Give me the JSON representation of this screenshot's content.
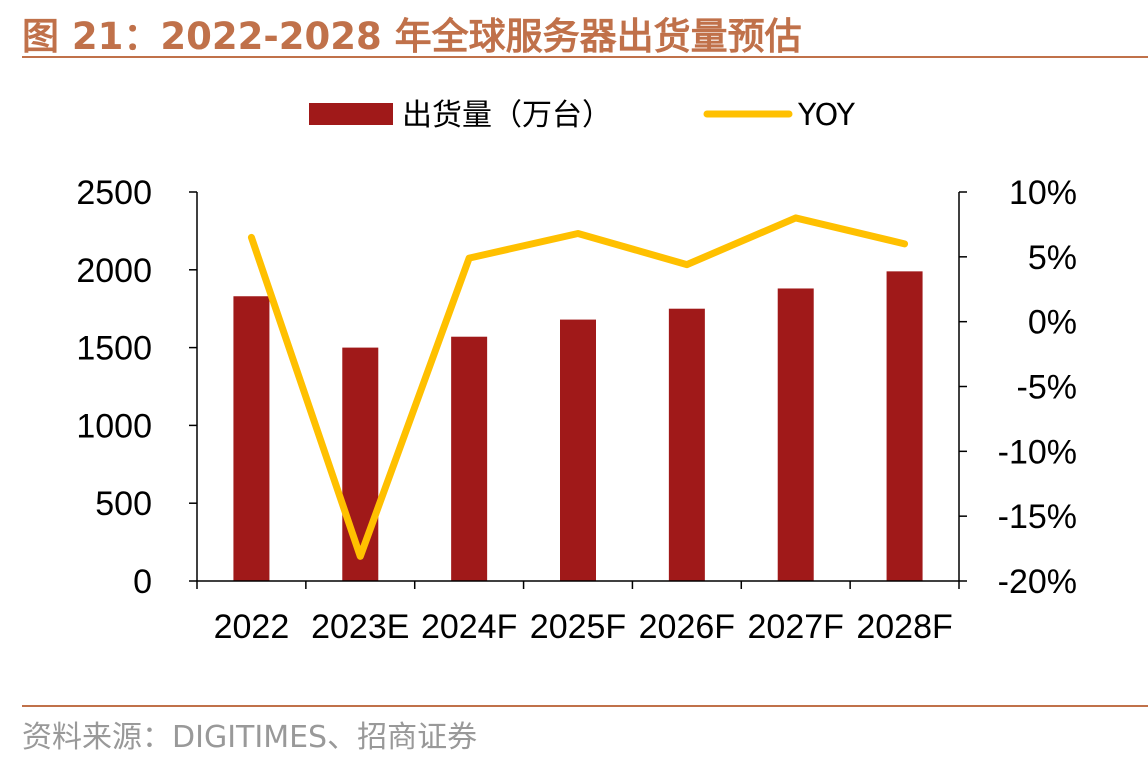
{
  "title": "图 21：2022-2028 年全球服务器出货量预估",
  "source": "资料来源：DIGITIMES、招商证券",
  "colors": {
    "title": "#c0714a",
    "bar": "#a01919",
    "line": "#ffc000",
    "axis": "#000000",
    "source": "#999999"
  },
  "chart_data": {
    "type": "bar",
    "categories": [
      "2022",
      "2023E",
      "2024F",
      "2025F",
      "2026F",
      "2027F",
      "2028F"
    ],
    "series": [
      {
        "name": "出货量（万台）",
        "type": "bar",
        "axis": "left",
        "values": [
          1830,
          1500,
          1570,
          1680,
          1750,
          1880,
          1990
        ]
      },
      {
        "name": "YOY",
        "type": "line",
        "axis": "right",
        "values": [
          6.5,
          -18.1,
          4.9,
          6.8,
          4.4,
          8.0,
          6.0
        ]
      }
    ],
    "y_left": {
      "ylim": [
        0,
        2500
      ],
      "ticks": [
        0,
        500,
        1000,
        1500,
        2000,
        2500
      ],
      "tick_labels": [
        "0",
        "500",
        "1000",
        "1500",
        "2000",
        "2500"
      ]
    },
    "y_right": {
      "ylim": [
        -20,
        10
      ],
      "ticks": [
        -20,
        -15,
        -10,
        -5,
        0,
        5,
        10
      ],
      "tick_labels": [
        "-20%",
        "-15%",
        "-10%",
        "-5%",
        "0%",
        "5%",
        "10%"
      ]
    },
    "legend": {
      "position": "top-center",
      "entries": [
        "出货量（万台）",
        "YOY"
      ]
    },
    "grid": false
  }
}
